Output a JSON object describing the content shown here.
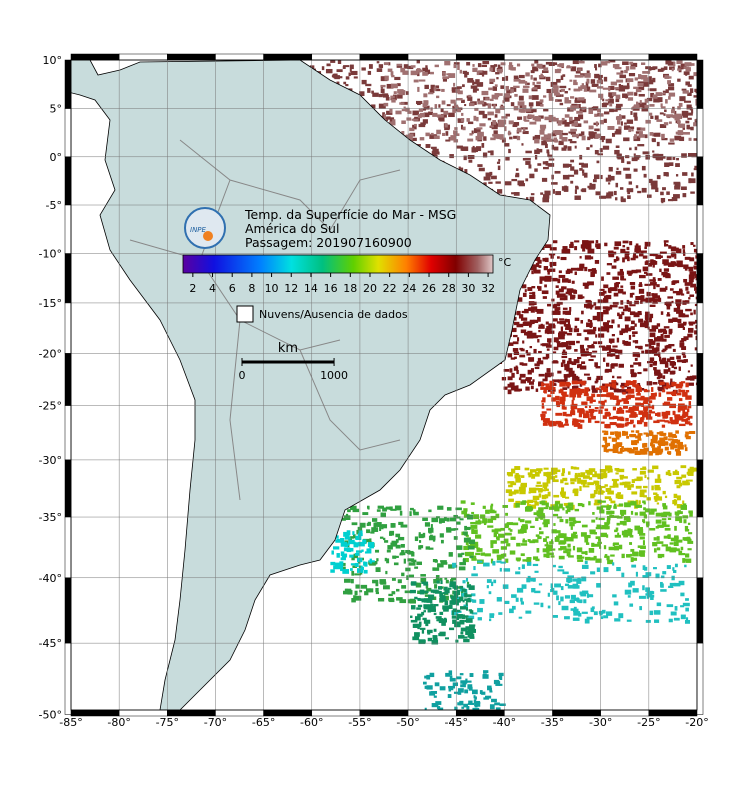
{
  "map": {
    "title_lines": [
      "Temp. da Superfície do Mar - MSG",
      "América do Sul",
      "Passagem: 201907160900"
    ],
    "logo_text": "INPE",
    "lon_ticks": [
      {
        "value": -85,
        "label": "-85°"
      },
      {
        "value": -80,
        "label": "-80°"
      },
      {
        "value": -75,
        "label": "-75°"
      },
      {
        "value": -70,
        "label": "-70°"
      },
      {
        "value": -65,
        "label": "-65°"
      },
      {
        "value": -60,
        "label": "-60°"
      },
      {
        "value": -55,
        "label": "-55°"
      },
      {
        "value": -50,
        "label": "-50°"
      },
      {
        "value": -45,
        "label": "-45°"
      },
      {
        "value": -40,
        "label": "-40°"
      },
      {
        "value": -35,
        "label": "-35°"
      },
      {
        "value": -30,
        "label": "-30°"
      },
      {
        "value": -25,
        "label": "-25°"
      },
      {
        "value": -20,
        "label": "-20°"
      }
    ],
    "lat_ticks": [
      {
        "value": 10,
        "label": "10°"
      },
      {
        "value": 5,
        "label": "5°"
      },
      {
        "value": 0,
        "label": "0°"
      },
      {
        "value": -5,
        "label": "-5°"
      },
      {
        "value": -10,
        "label": "-10°"
      },
      {
        "value": -15,
        "label": "-15°"
      },
      {
        "value": -20,
        "label": "-20°"
      },
      {
        "value": -25,
        "label": "-25°"
      },
      {
        "value": -30,
        "label": "-30°"
      },
      {
        "value": -35,
        "label": "-35°"
      },
      {
        "value": -40,
        "label": "-40°"
      },
      {
        "value": -45,
        "label": "-45°"
      },
      {
        "value": -50,
        "label": "-50°"
      }
    ],
    "colorbar": {
      "unit": "°C",
      "lim": [
        1,
        32.5
      ],
      "ticks": [
        2,
        4,
        6,
        8,
        10,
        12,
        14,
        16,
        18,
        20,
        22,
        24,
        26,
        28,
        30,
        32
      ]
    },
    "legend": "Nuvens/Ausencia de dados",
    "scale_bar": {
      "unit": "km",
      "ticks": [
        0,
        1000
      ]
    }
  }
}
